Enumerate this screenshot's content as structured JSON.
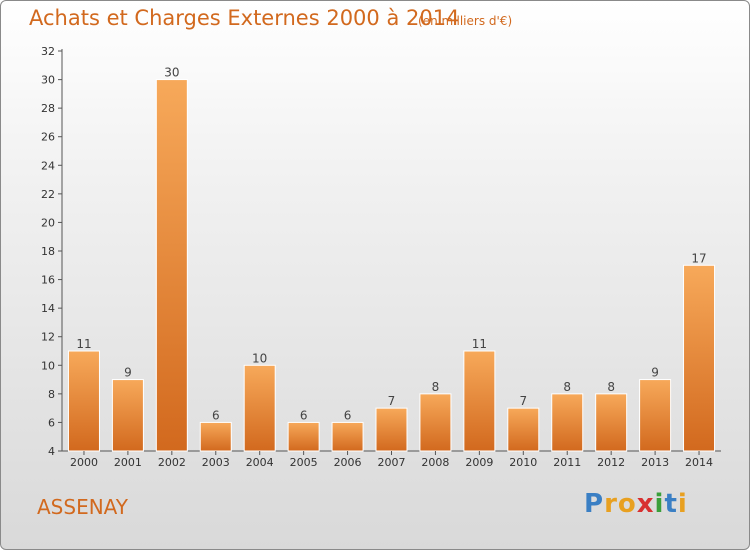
{
  "chart_data": {
    "type": "bar",
    "title": "Achats et Charges Externes 2000 à 2014",
    "subtitle": "(en milliers d'€)",
    "categories": [
      "2000",
      "2001",
      "2002",
      "2003",
      "2004",
      "2005",
      "2006",
      "2007",
      "2008",
      "2009",
      "2010",
      "2011",
      "2012",
      "2013",
      "2014"
    ],
    "values": [
      11,
      9,
      30,
      6,
      10,
      6,
      6,
      7,
      8,
      11,
      7,
      8,
      8,
      9,
      17
    ],
    "ylim": [
      4,
      32
    ],
    "yticks": [
      4,
      6,
      8,
      10,
      12,
      14,
      16,
      18,
      20,
      22,
      24,
      26,
      28,
      30,
      32
    ],
    "grid": false,
    "bar_color": "#f08a30",
    "bar_color_light": "#f7a95a",
    "bar_color_dark": "#d2691e",
    "text_color": "#d2691e"
  },
  "commune": "ASSENAY",
  "logo": {
    "letters": [
      "P",
      "r",
      "o",
      "x",
      "i",
      "t",
      "i"
    ],
    "colors": [
      "#3a7fc4",
      "#e8a020",
      "#e8a020",
      "#d83030",
      "#3a9f3a",
      "#3a7fc4",
      "#e8a020"
    ]
  }
}
